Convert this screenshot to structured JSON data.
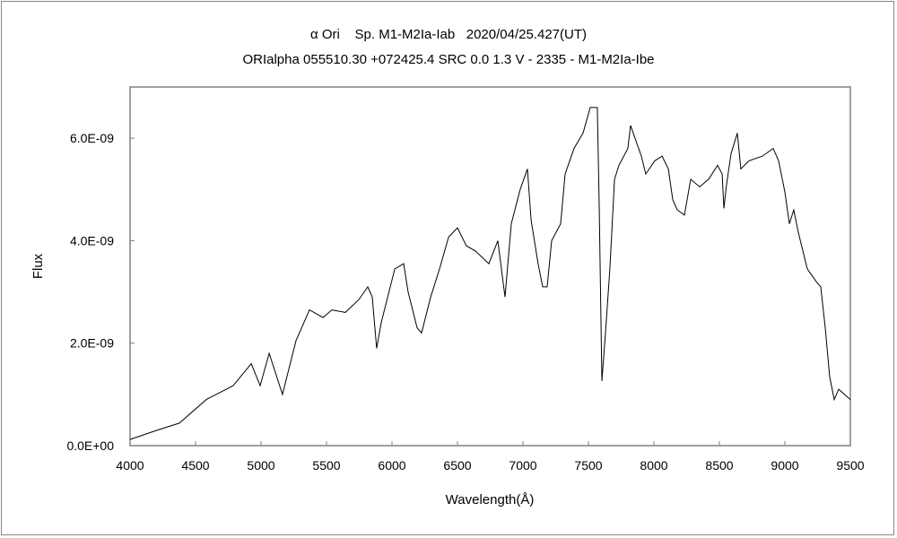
{
  "chart_data": {
    "type": "line",
    "title": "α Ori    Sp. M1-M2Ia-Iab   2020/04/25.427(UT)",
    "subtitle": "ORIalpha 055510.30 +072425.4 SRC 0.0 1.3 V - 2335 - M1-M2Ia-Ibe",
    "xlabel": "Wavelength(Å)",
    "ylabel": "Flux",
    "xlim": [
      4000,
      9500
    ],
    "ylim": [
      0,
      7e-09
    ],
    "x_ticks": [
      4000,
      4500,
      5000,
      5500,
      6000,
      6500,
      7000,
      7500,
      8000,
      8500,
      9000,
      9500
    ],
    "x_tick_labels": [
      "4000",
      "4500",
      "5000",
      "5500",
      "6000",
      "6500",
      "7000",
      "7500",
      "8000",
      "8500",
      "9000",
      "9500"
    ],
    "y_ticks": [
      0,
      2e-09,
      4e-09,
      6e-09
    ],
    "y_tick_labels": [
      "0.0E+00",
      "2.0E-09",
      "4.0E-09",
      "6.0E-09"
    ],
    "grid": false,
    "series": [
      {
        "name": "Flux",
        "color": "#000000",
        "x": [
          4000,
          4205,
          4377,
          4582,
          4788,
          4925,
          4993,
          5062,
          5164,
          5267,
          5370,
          5473,
          5541,
          5644,
          5747,
          5815,
          5849,
          5883,
          5918,
          6021,
          6089,
          6123,
          6192,
          6226,
          6295,
          6363,
          6432,
          6500,
          6568,
          6637,
          6740,
          6808,
          6863,
          6911,
          6979,
          7034,
          7062,
          7116,
          7151,
          7185,
          7219,
          7288,
          7322,
          7390,
          7459,
          7514,
          7568,
          7582,
          7603,
          7630,
          7664,
          7699,
          7733,
          7801,
          7822,
          7870,
          7904,
          7938,
          8007,
          8062,
          8110,
          8144,
          8178,
          8233,
          8281,
          8349,
          8418,
          8486,
          8521,
          8534,
          8555,
          8589,
          8637,
          8664,
          8726,
          8829,
          8911,
          8952,
          9000,
          9034,
          9068,
          9103,
          9171,
          9240,
          9274,
          9308,
          9342,
          9377,
          9411,
          9500
        ],
        "y": [
          1.2e-10,
          3e-10,
          4.4e-10,
          9e-10,
          1.17e-09,
          1.6e-09,
          1.17e-09,
          1.8e-09,
          1e-09,
          2.05e-09,
          2.65e-09,
          2.5e-09,
          2.65e-09,
          2.6e-09,
          2.85e-09,
          3.1e-09,
          2.9e-09,
          1.9e-09,
          2.4e-09,
          3.45e-09,
          3.55e-09,
          3e-09,
          2.3e-09,
          2.2e-09,
          2.9e-09,
          3.45e-09,
          4.07e-09,
          4.25e-09,
          3.9e-09,
          3.8e-09,
          3.55e-09,
          4e-09,
          2.9e-09,
          4.33e-09,
          5e-09,
          5.4e-09,
          4.4e-09,
          3.55e-09,
          3.1e-09,
          3.1e-09,
          4e-09,
          4.33e-09,
          5.3e-09,
          5.8e-09,
          6.1e-09,
          6.6e-09,
          6.6e-09,
          4.7e-09,
          1.26e-09,
          2.2e-09,
          3.45e-09,
          5.2e-09,
          5.47e-09,
          5.8e-09,
          6.25e-09,
          5.9e-09,
          5.65e-09,
          5.3e-09,
          5.56e-09,
          5.65e-09,
          5.4e-09,
          4.8e-09,
          4.6e-09,
          4.5e-09,
          5.2e-09,
          5.05e-09,
          5.2e-09,
          5.47e-09,
          5.3e-09,
          4.63e-09,
          5.1e-09,
          5.7e-09,
          6.1e-09,
          5.4e-09,
          5.56e-09,
          5.65e-09,
          5.8e-09,
          5.56e-09,
          4.95e-09,
          4.33e-09,
          4.6e-09,
          4.16e-09,
          3.45e-09,
          3.2e-09,
          3.1e-09,
          2.3e-09,
          1.35e-09,
          9e-10,
          1.1e-09,
          9e-10
        ]
      }
    ]
  }
}
